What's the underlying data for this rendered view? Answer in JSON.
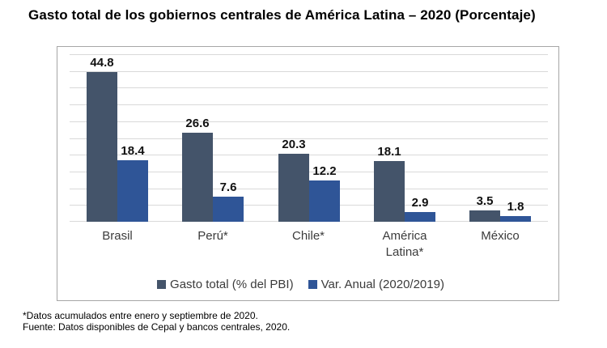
{
  "title": "Gasto total de los gobiernos centrales de América Latina – 2020 (Porcentaje)",
  "chart_data": {
    "type": "bar",
    "categories": [
      "Brasil",
      "Perú*",
      "Chile*",
      "América Latina*",
      "México"
    ],
    "series": [
      {
        "name": "Gasto total (% del PBI)",
        "color": "#44546A",
        "values": [
          44.8,
          26.6,
          20.3,
          18.1,
          3.5
        ]
      },
      {
        "name": "Var. Anual (2020/2019)",
        "color": "#2F5597",
        "values": [
          18.4,
          7.6,
          12.2,
          2.9,
          1.8
        ]
      }
    ],
    "ylim": [
      0,
      50
    ],
    "grid_step": 5,
    "grid": true,
    "y_axis_labels_visible": false,
    "value_labels": true,
    "legend_position": "bottom"
  },
  "colors": {
    "gridline": "#D9D9D9",
    "frame_border": "#A6A6A6",
    "value_label": "#111111",
    "axis_text": "#3B3B3B"
  },
  "footnotes": [
    "*Datos acumulados entre enero y septiembre de 2020.",
    "Fuente: Datos disponibles de Cepal y bancos centrales, 2020."
  ]
}
